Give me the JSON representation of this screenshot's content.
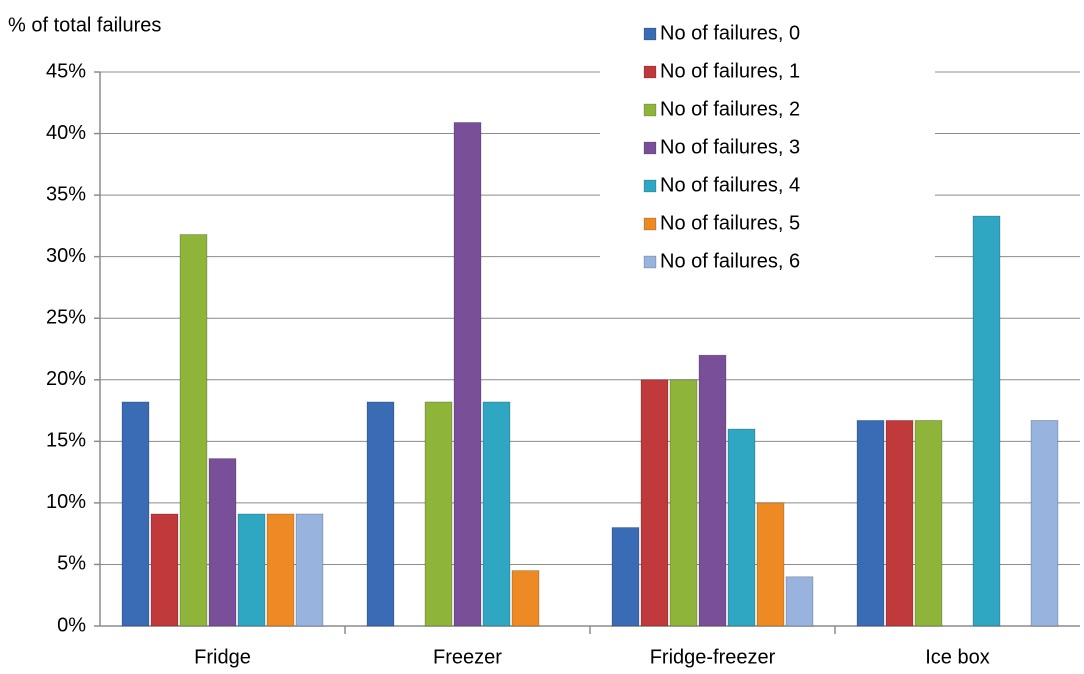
{
  "chart_data": {
    "type": "bar",
    "y_axis_label": "% of total failures",
    "categories": [
      "Fridge",
      "Freezer",
      "Fridge-freezer",
      "Ice box"
    ],
    "series": [
      {
        "name": "No of failures, 0",
        "color": "#3a6bb5",
        "values": [
          18.2,
          18.2,
          8,
          16.7
        ]
      },
      {
        "name": "No of failures, 1",
        "color": "#c0393b",
        "values": [
          9.1,
          0,
          20,
          16.7
        ]
      },
      {
        "name": "No of failures, 2",
        "color": "#8fb43a",
        "values": [
          31.8,
          18.2,
          20,
          16.7
        ]
      },
      {
        "name": "No of failures, 3",
        "color": "#7a4f9a",
        "values": [
          13.6,
          40.9,
          22,
          0
        ]
      },
      {
        "name": "No of failures, 4",
        "color": "#2fa6c2",
        "values": [
          9.1,
          18.2,
          16,
          33.3
        ]
      },
      {
        "name": "No of failures, 5",
        "color": "#ee8a24",
        "values": [
          9.1,
          4.5,
          10,
          0
        ]
      },
      {
        "name": "No of failures, 6",
        "color": "#98b3dd",
        "values": [
          9.1,
          0,
          4,
          16.7
        ]
      }
    ],
    "ylim": [
      0,
      45
    ],
    "yticks": [
      {
        "value": 0,
        "label": "0%"
      },
      {
        "value": 5,
        "label": "5%"
      },
      {
        "value": 10,
        "label": "10%"
      },
      {
        "value": 15,
        "label": "15%"
      },
      {
        "value": 20,
        "label": "20%"
      },
      {
        "value": 25,
        "label": "25%"
      },
      {
        "value": 30,
        "label": "30%"
      },
      {
        "value": 35,
        "label": "35%"
      },
      {
        "value": 40,
        "label": "40%"
      },
      {
        "value": 45,
        "label": "45%"
      }
    ],
    "grid": true,
    "legend": "top-right"
  }
}
